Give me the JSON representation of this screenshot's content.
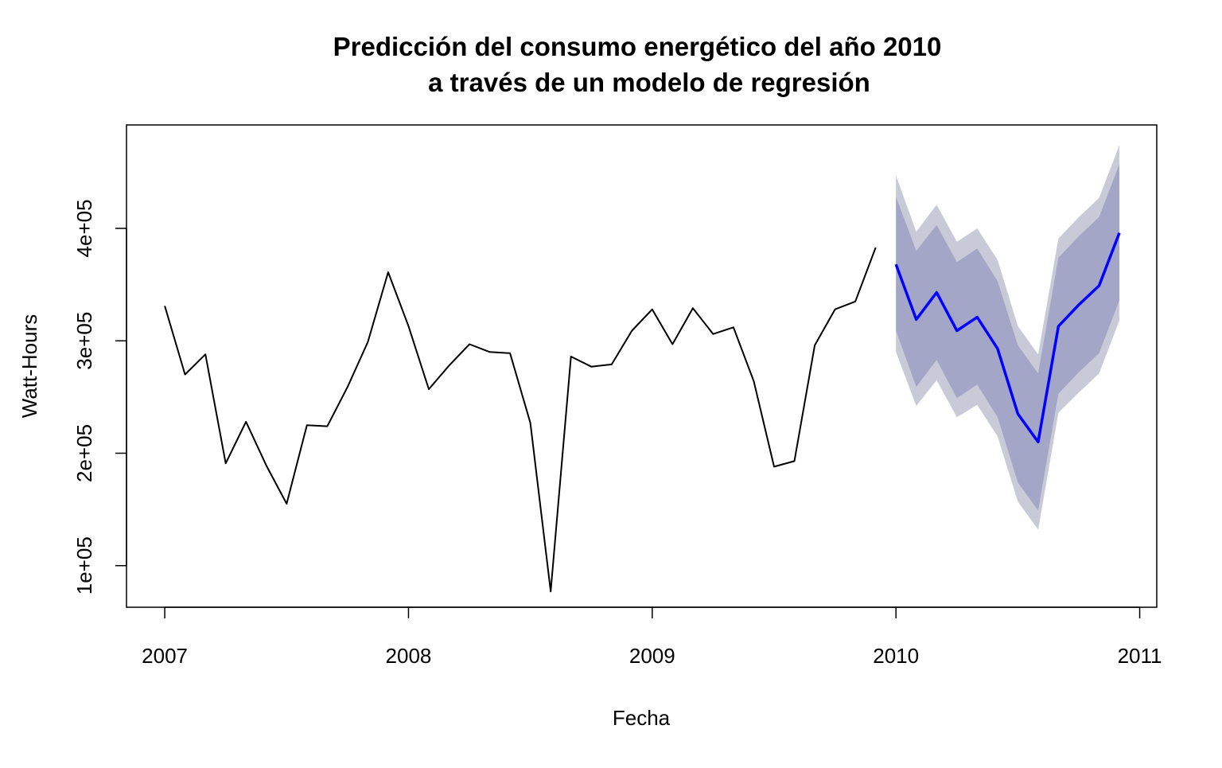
{
  "chart_data": {
    "type": "line",
    "title": [
      "Predicción del consumo energético del año 2010",
      "a través de un modelo de regresión"
    ],
    "xlabel": "Fecha",
    "ylabel": "Watt-Hours",
    "xlim": [
      2006.843,
      2011.07
    ],
    "ylim": [
      63000,
      492000
    ],
    "x_ticks": [
      2007,
      2008,
      2009,
      2010,
      2011
    ],
    "x_tick_labels": [
      "2007",
      "2008",
      "2009",
      "2010",
      "2011"
    ],
    "y_ticks": [
      100000,
      200000,
      300000,
      400000
    ],
    "y_tick_labels": [
      "1e+05",
      "2e+05",
      "3e+05",
      "4e+05"
    ],
    "grid": false,
    "legend": "none",
    "colors": {
      "observed": "#000000",
      "forecast": "#0000ff",
      "band_80": "#a3a6c6",
      "band_95": "#c8cad8"
    },
    "series": [
      {
        "role": "observed",
        "x": [
          2007.0,
          2007.0833,
          2007.1667,
          2007.25,
          2007.3333,
          2007.4167,
          2007.5,
          2007.5833,
          2007.6667,
          2007.75,
          2007.8333,
          2007.9167,
          2008.0,
          2008.0833,
          2008.1667,
          2008.25,
          2008.3333,
          2008.4167,
          2008.5,
          2008.5833,
          2008.6667,
          2008.75,
          2008.8333,
          2008.9167,
          2009.0,
          2009.0833,
          2009.1667,
          2009.25,
          2009.3333,
          2009.4167,
          2009.5,
          2009.5833,
          2009.6667,
          2009.75,
          2009.8333,
          2009.9167
        ],
        "values": [
          331000,
          270000,
          288000,
          191000,
          228000,
          189000,
          155000,
          225000,
          224000,
          259000,
          299000,
          361000,
          313000,
          257000,
          278000,
          297000,
          290000,
          289000,
          227000,
          77000,
          286000,
          277000,
          279000,
          309000,
          328000,
          297000,
          329000,
          306000,
          312000,
          264000,
          188000,
          193000,
          296000,
          328000,
          335000,
          383000
        ]
      },
      {
        "role": "forecast",
        "x": [
          2010.0,
          2010.0833,
          2010.1667,
          2010.25,
          2010.3333,
          2010.4167,
          2010.5,
          2010.5833,
          2010.6667,
          2010.75,
          2010.8333,
          2010.9167
        ],
        "values": [
          368000,
          319000,
          343000,
          309000,
          321000,
          293000,
          235000,
          210000,
          313000,
          332000,
          349000,
          396000
        ],
        "lo80": [
          309000,
          259000,
          283000,
          249000,
          261000,
          232000,
          174000,
          149000,
          253000,
          272000,
          289000,
          336000
        ],
        "hi80": [
          428000,
          380000,
          403000,
          370000,
          382000,
          353000,
          296000,
          271000,
          374000,
          393000,
          410000,
          457000
        ],
        "lo95": [
          290000,
          242000,
          265000,
          232000,
          243000,
          215000,
          157000,
          132000,
          236000,
          254000,
          271000,
          318000
        ],
        "hi95": [
          447000,
          397000,
          421000,
          388000,
          400000,
          372000,
          313000,
          288000,
          391000,
          410000,
          427000,
          474000
        ]
      }
    ]
  }
}
